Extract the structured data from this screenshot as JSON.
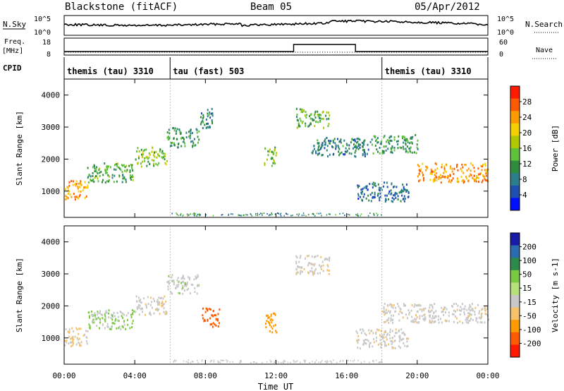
{
  "header": {
    "title_left": "Blackstone (fitACF)",
    "title_center": "Beam 05",
    "title_right": "05/Apr/2012"
  },
  "left_labels": {
    "nsky": "N.Sky",
    "freq": "Freq.",
    "mhz": "[MHz]",
    "cpid": "CPID"
  },
  "right_labels": {
    "nsearch": "N.Search",
    "nave": "Nave"
  },
  "noise_axis": {
    "top": "10^5",
    "bottom": "10^0"
  },
  "freq_axis": {
    "left": [
      "18",
      "8"
    ],
    "right": [
      "60",
      "0"
    ]
  },
  "cpid": {
    "segments": [
      {
        "label": "themis (tau) 3310",
        "start_h": 0.0
      },
      {
        "label": "tau (fast) 503",
        "start_h": 6.0
      },
      {
        "label": "themis (tau) 3310",
        "start_h": 18.0
      }
    ]
  },
  "x_label": "Time UT",
  "y_label": "Slant Range [km]",
  "power_colorbar": {
    "label": "Power [dB]",
    "ticks": [
      "28",
      "24",
      "20",
      "16",
      "12",
      "8",
      "4"
    ],
    "colors": [
      "#ff1a00",
      "#ff5a00",
      "#ff9a00",
      "#f4d000",
      "#b0c800",
      "#5fc23a",
      "#2e8c3c",
      "#2c7f8a",
      "#1f4fb0",
      "#0010ff"
    ]
  },
  "velocity_colorbar": {
    "label": "Velocity [m s-1]",
    "ticks": [
      "200",
      "100",
      "50",
      "15",
      "-15",
      "-50",
      "-100",
      "-200"
    ],
    "colors": [
      "#1a1aa8",
      "#2b6cb0",
      "#2c8a4a",
      "#7ac943",
      "#b8e07a",
      "#c8c8c8",
      "#f5c26b",
      "#ff9a00",
      "#ff5a00",
      "#ff1a00"
    ]
  },
  "chart_data": {
    "type": "heatmap",
    "title": "Blackstone (fitACF) Beam 05 05/Apr/2012",
    "x_range_hours": [
      0,
      24
    ],
    "x_ticks": [
      "00:00",
      "04:00",
      "08:00",
      "12:00",
      "16:00",
      "20:00",
      "00:00"
    ],
    "y_range_km": [
      180,
      4500
    ],
    "y_ticks": [
      1000,
      2000,
      3000,
      4000
    ],
    "panels": [
      {
        "name": "Power",
        "ylabel": "Slant Range [km]",
        "bands": [
          {
            "from_h": 0.0,
            "to_h": 1.3,
            "range_km": 1050,
            "value": 24
          },
          {
            "from_h": 1.3,
            "to_h": 4.0,
            "range_km": 1600,
            "value": 14
          },
          {
            "from_h": 4.0,
            "to_h": 5.8,
            "range_km": 2100,
            "value": 16
          },
          {
            "from_h": 5.8,
            "to_h": 7.6,
            "range_km": 2700,
            "value": 12
          },
          {
            "from_h": 7.6,
            "to_h": 8.4,
            "range_km": 3300,
            "value": 10
          },
          {
            "from_h": 11.3,
            "to_h": 12.0,
            "range_km": 2100,
            "value": 16
          },
          {
            "from_h": 13.1,
            "to_h": 15.0,
            "range_km": 3300,
            "value": 14
          },
          {
            "from_h": 14.0,
            "to_h": 17.5,
            "range_km": 2400,
            "value": 10
          },
          {
            "from_h": 16.5,
            "to_h": 19.5,
            "range_km": 1000,
            "value": 8
          },
          {
            "from_h": 17.5,
            "to_h": 20.0,
            "range_km": 2500,
            "value": 12
          },
          {
            "from_h": 20.0,
            "to_h": 24.0,
            "range_km": 1600,
            "value": 24
          }
        ]
      },
      {
        "name": "Velocity",
        "ylabel": "Slant Range [km]",
        "bands": [
          {
            "from_h": 0.0,
            "to_h": 1.3,
            "range_km": 1050,
            "value": -15
          },
          {
            "from_h": 1.3,
            "to_h": 4.0,
            "range_km": 1600,
            "value": 15
          },
          {
            "from_h": 4.0,
            "to_h": 5.8,
            "range_km": 2050,
            "value": -5
          },
          {
            "from_h": 5.8,
            "to_h": 7.6,
            "range_km": 2700,
            "value": 5
          },
          {
            "from_h": 7.8,
            "to_h": 8.8,
            "range_km": 1650,
            "value": -120
          },
          {
            "from_h": 11.3,
            "to_h": 12.0,
            "range_km": 1500,
            "value": -80
          },
          {
            "from_h": 13.1,
            "to_h": 15.0,
            "range_km": 3300,
            "value": -5
          },
          {
            "from_h": 16.5,
            "to_h": 19.5,
            "range_km": 1000,
            "value": -5
          },
          {
            "from_h": 18.0,
            "to_h": 24.0,
            "range_km": 1800,
            "value": -5
          }
        ]
      }
    ],
    "frequency_MHz": [
      {
        "from_h": 0.0,
        "to_h": 13.0,
        "value": 10
      },
      {
        "from_h": 13.0,
        "to_h": 16.5,
        "value": 15
      },
      {
        "from_h": 16.5,
        "to_h": 24.0,
        "value": 10
      }
    ]
  }
}
